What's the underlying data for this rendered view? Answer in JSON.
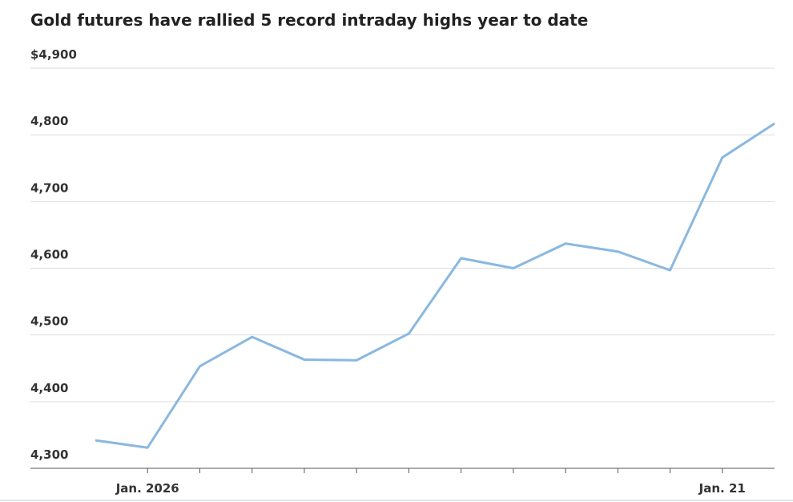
{
  "chart_data": {
    "type": "line",
    "title": "Gold futures have rallied 5 record intraday highs year to date",
    "categories": [
      null,
      "Jan. 2026",
      null,
      null,
      null,
      null,
      null,
      null,
      null,
      null,
      null,
      null,
      "Jan. 21",
      null
    ],
    "values": [
      4342,
      4331,
      4453,
      4497,
      4463,
      4462,
      4502,
      4615,
      4600,
      4637,
      4625,
      4597,
      4766,
      4817
    ],
    "color": "#8ab8e0",
    "ylim": [
      4300,
      4900
    ],
    "yticks": [
      {
        "value": 4300,
        "label": "4,300"
      },
      {
        "value": 4400,
        "label": "4,400"
      },
      {
        "value": 4500,
        "label": "4,500"
      },
      {
        "value": 4600,
        "label": "4,600"
      },
      {
        "value": 4700,
        "label": "4,700"
      },
      {
        "value": 4800,
        "label": "4,800"
      },
      {
        "value": 4900,
        "label": "$4,900"
      }
    ],
    "grid": true
  }
}
